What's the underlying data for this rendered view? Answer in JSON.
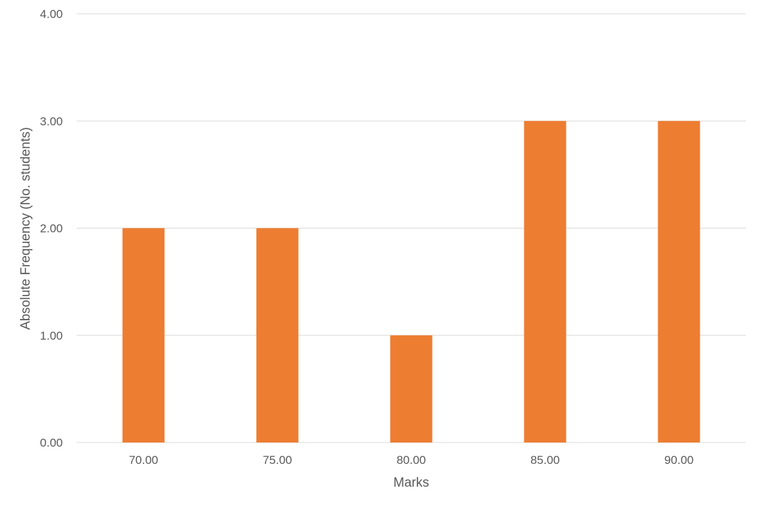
{
  "chart_data": {
    "type": "bar",
    "categories": [
      "70.00",
      "75.00",
      "80.00",
      "85.00",
      "90.00"
    ],
    "series": [
      {
        "values": [
          2,
          2,
          1,
          3,
          3
        ]
      }
    ],
    "xlabel": "Marks",
    "ylabel": "Absolute Frequency (No. students)",
    "ylim": [
      0,
      4
    ],
    "yticks": [
      "0.00",
      "1.00",
      "2.00",
      "3.00",
      "4.00"
    ],
    "grid": true,
    "legend": "none",
    "colors": {
      "bar": "#ED7D31",
      "gridline": "#D9D9D9",
      "text": "#595959"
    }
  }
}
